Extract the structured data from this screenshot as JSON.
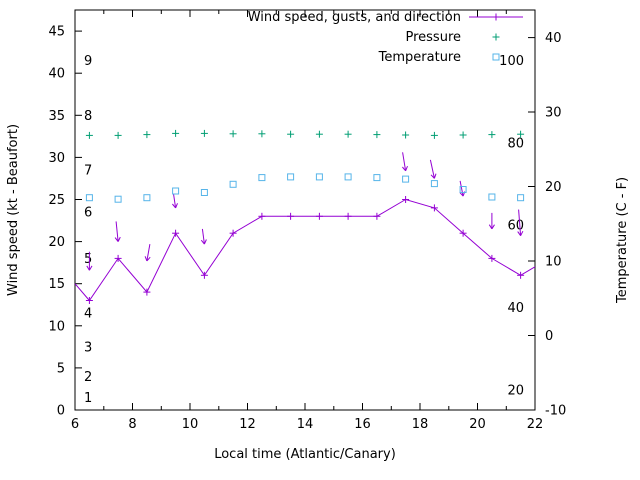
{
  "chart_data": {
    "type": "line",
    "title": "",
    "xlabel": "Local time (Atlantic/Canary)",
    "ylabel_left": "Wind speed (kt - Beaufort)",
    "ylabel_right": "Temperature (C - F)",
    "x_range": [
      6,
      22
    ],
    "x_ticks": [
      6,
      8,
      10,
      12,
      14,
      16,
      18,
      20,
      22
    ],
    "x_minor_step": 1,
    "y_left_range": [
      0,
      47.5
    ],
    "y_left_ticks": [
      0,
      5,
      10,
      15,
      20,
      25,
      30,
      35,
      40,
      45
    ],
    "y_right_range": [
      -10,
      43.7
    ],
    "y_right_ticks": [
      -10,
      0,
      10,
      20,
      30,
      40
    ],
    "grid": false,
    "legend_position": "top-right-inside",
    "beaufort_labels": [
      {
        "label": "1",
        "kt": 1.5
      },
      {
        "label": "2",
        "kt": 4
      },
      {
        "label": "3",
        "kt": 7.5
      },
      {
        "label": "4",
        "kt": 11.5
      },
      {
        "label": "5",
        "kt": 18
      },
      {
        "label": "6",
        "kt": 23.5
      },
      {
        "label": "7",
        "kt": 28.5
      },
      {
        "label": "8",
        "kt": 35
      },
      {
        "label": "9",
        "kt": 41.5
      }
    ],
    "pressure_axis": {
      "labels": [
        20,
        40,
        60,
        80,
        100
      ],
      "anchor_values": [
        20,
        100
      ],
      "anchor_kt": [
        2.4,
        41.5
      ]
    },
    "legend": [
      {
        "label": "Wind speed, gusts, and direction",
        "color": "#9400d3",
        "marker": "plus-line"
      },
      {
        "label": "Pressure",
        "color": "#009e73",
        "marker": "plus"
      },
      {
        "label": "Temperature",
        "color": "#56b4e9",
        "marker": "square"
      }
    ],
    "series": [
      {
        "name": "wind_speed_kt",
        "color": "#9400d3",
        "points": [
          [
            6,
            15,
            0
          ],
          [
            6.5,
            13,
            1
          ],
          [
            7.5,
            18,
            1
          ],
          [
            8.5,
            14,
            1
          ],
          [
            9.5,
            21,
            1
          ],
          [
            10.5,
            16,
            1
          ],
          [
            11.5,
            21,
            1
          ],
          [
            12.5,
            23,
            1
          ],
          [
            13.5,
            23,
            1
          ],
          [
            14.5,
            23,
            1
          ],
          [
            15.5,
            23,
            1
          ],
          [
            16.5,
            23,
            1
          ],
          [
            17.5,
            25,
            1
          ],
          [
            18.5,
            24,
            1
          ],
          [
            19.5,
            21,
            1
          ],
          [
            20.5,
            18,
            1
          ],
          [
            21.5,
            16,
            1
          ],
          [
            22,
            17,
            0
          ]
        ]
      },
      {
        "name": "pressure",
        "color": "#009e73",
        "points": [
          [
            6.5,
            81.8
          ],
          [
            7.5,
            81.8
          ],
          [
            8.5,
            82.0
          ],
          [
            9.5,
            82.3
          ],
          [
            10.5,
            82.3
          ],
          [
            11.5,
            82.2
          ],
          [
            12.5,
            82.2
          ],
          [
            13.5,
            82.1
          ],
          [
            14.5,
            82.1
          ],
          [
            15.5,
            82.1
          ],
          [
            16.5,
            82.0
          ],
          [
            17.5,
            81.9
          ],
          [
            18.5,
            81.8
          ],
          [
            19.5,
            81.9
          ],
          [
            20.5,
            82.0
          ],
          [
            21.5,
            82.1
          ]
        ]
      },
      {
        "name": "temperature_c",
        "color": "#56b4e9",
        "points": [
          [
            6.5,
            18.5
          ],
          [
            7.5,
            18.3
          ],
          [
            8.5,
            18.5
          ],
          [
            9.5,
            19.4
          ],
          [
            10.5,
            19.2
          ],
          [
            11.5,
            20.3
          ],
          [
            12.5,
            21.2
          ],
          [
            13.5,
            21.3
          ],
          [
            14.5,
            21.3
          ],
          [
            15.5,
            21.3
          ],
          [
            16.5,
            21.2
          ],
          [
            17.5,
            21.0
          ],
          [
            18.5,
            20.4
          ],
          [
            19.5,
            19.6
          ],
          [
            20.5,
            18.6
          ],
          [
            21.5,
            18.5
          ]
        ]
      }
    ],
    "wind_direction_arrows": [
      [
        6.5,
        18.8,
        16.6,
        0
      ],
      [
        7.5,
        22.4,
        20.0,
        -2
      ],
      [
        8.5,
        19.7,
        17.7,
        3
      ],
      [
        9.5,
        25.6,
        24.0,
        -2
      ],
      [
        10.5,
        21.5,
        19.7,
        -2
      ],
      [
        17.5,
        30.6,
        28.4,
        -3
      ],
      [
        18.5,
        29.7,
        27.5,
        -4
      ],
      [
        19.5,
        27.2,
        25.4,
        -3
      ],
      [
        20.5,
        23.4,
        21.5,
        0
      ],
      [
        21.5,
        23.8,
        20.7,
        -2
      ]
    ]
  }
}
